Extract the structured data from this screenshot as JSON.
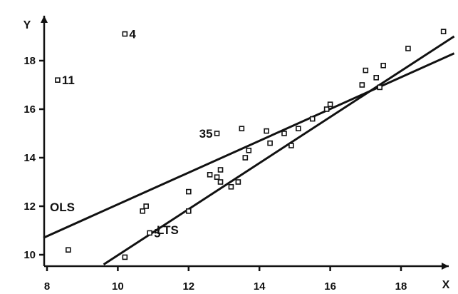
{
  "chart_data": {
    "type": "scatter",
    "xlabel": "X",
    "ylabel": "Y",
    "xlim": [
      8,
      19.5
    ],
    "ylim": [
      9.6,
      19.5
    ],
    "x_ticks": [
      8,
      10,
      12,
      14,
      16,
      18
    ],
    "y_ticks": [
      10,
      12,
      14,
      16,
      18
    ],
    "points": [
      {
        "x": 8.6,
        "y": 10.2
      },
      {
        "x": 10.2,
        "y": 9.9
      },
      {
        "x": 10.7,
        "y": 11.8
      },
      {
        "x": 10.8,
        "y": 12.0
      },
      {
        "x": 12.0,
        "y": 11.8
      },
      {
        "x": 12.0,
        "y": 12.6
      },
      {
        "x": 12.6,
        "y": 13.3
      },
      {
        "x": 12.8,
        "y": 13.2
      },
      {
        "x": 12.9,
        "y": 13.5
      },
      {
        "x": 12.9,
        "y": 13.0
      },
      {
        "x": 13.2,
        "y": 12.8
      },
      {
        "x": 13.4,
        "y": 13.0
      },
      {
        "x": 13.5,
        "y": 15.2
      },
      {
        "x": 13.6,
        "y": 14.0
      },
      {
        "x": 13.7,
        "y": 14.3
      },
      {
        "x": 14.2,
        "y": 15.1
      },
      {
        "x": 14.3,
        "y": 14.6
      },
      {
        "x": 14.7,
        "y": 15.0
      },
      {
        "x": 14.9,
        "y": 14.5
      },
      {
        "x": 15.1,
        "y": 15.2
      },
      {
        "x": 15.5,
        "y": 15.6
      },
      {
        "x": 15.9,
        "y": 16.0
      },
      {
        "x": 16.0,
        "y": 16.2
      },
      {
        "x": 16.9,
        "y": 17.0
      },
      {
        "x": 17.0,
        "y": 17.6
      },
      {
        "x": 17.3,
        "y": 17.3
      },
      {
        "x": 17.4,
        "y": 16.9
      },
      {
        "x": 17.5,
        "y": 17.8
      },
      {
        "x": 18.2,
        "y": 18.5
      },
      {
        "x": 19.2,
        "y": 19.2
      }
    ],
    "labeled_points": [
      {
        "label": "4",
        "x": 10.2,
        "y": 19.1
      },
      {
        "label": "11",
        "x": 8.3,
        "y": 17.2
      },
      {
        "label": "35",
        "x": 12.8,
        "y": 15.0
      },
      {
        "label": "5",
        "x": 10.9,
        "y": 10.9
      }
    ],
    "lines": [
      {
        "name": "OLS",
        "x": [
          7.9,
          19.5
        ],
        "y": [
          10.7,
          18.3
        ]
      },
      {
        "name": "LTS",
        "x": [
          9.6,
          19.5
        ],
        "y": [
          9.6,
          19.0
        ]
      }
    ],
    "grid": false,
    "legend": "none"
  }
}
